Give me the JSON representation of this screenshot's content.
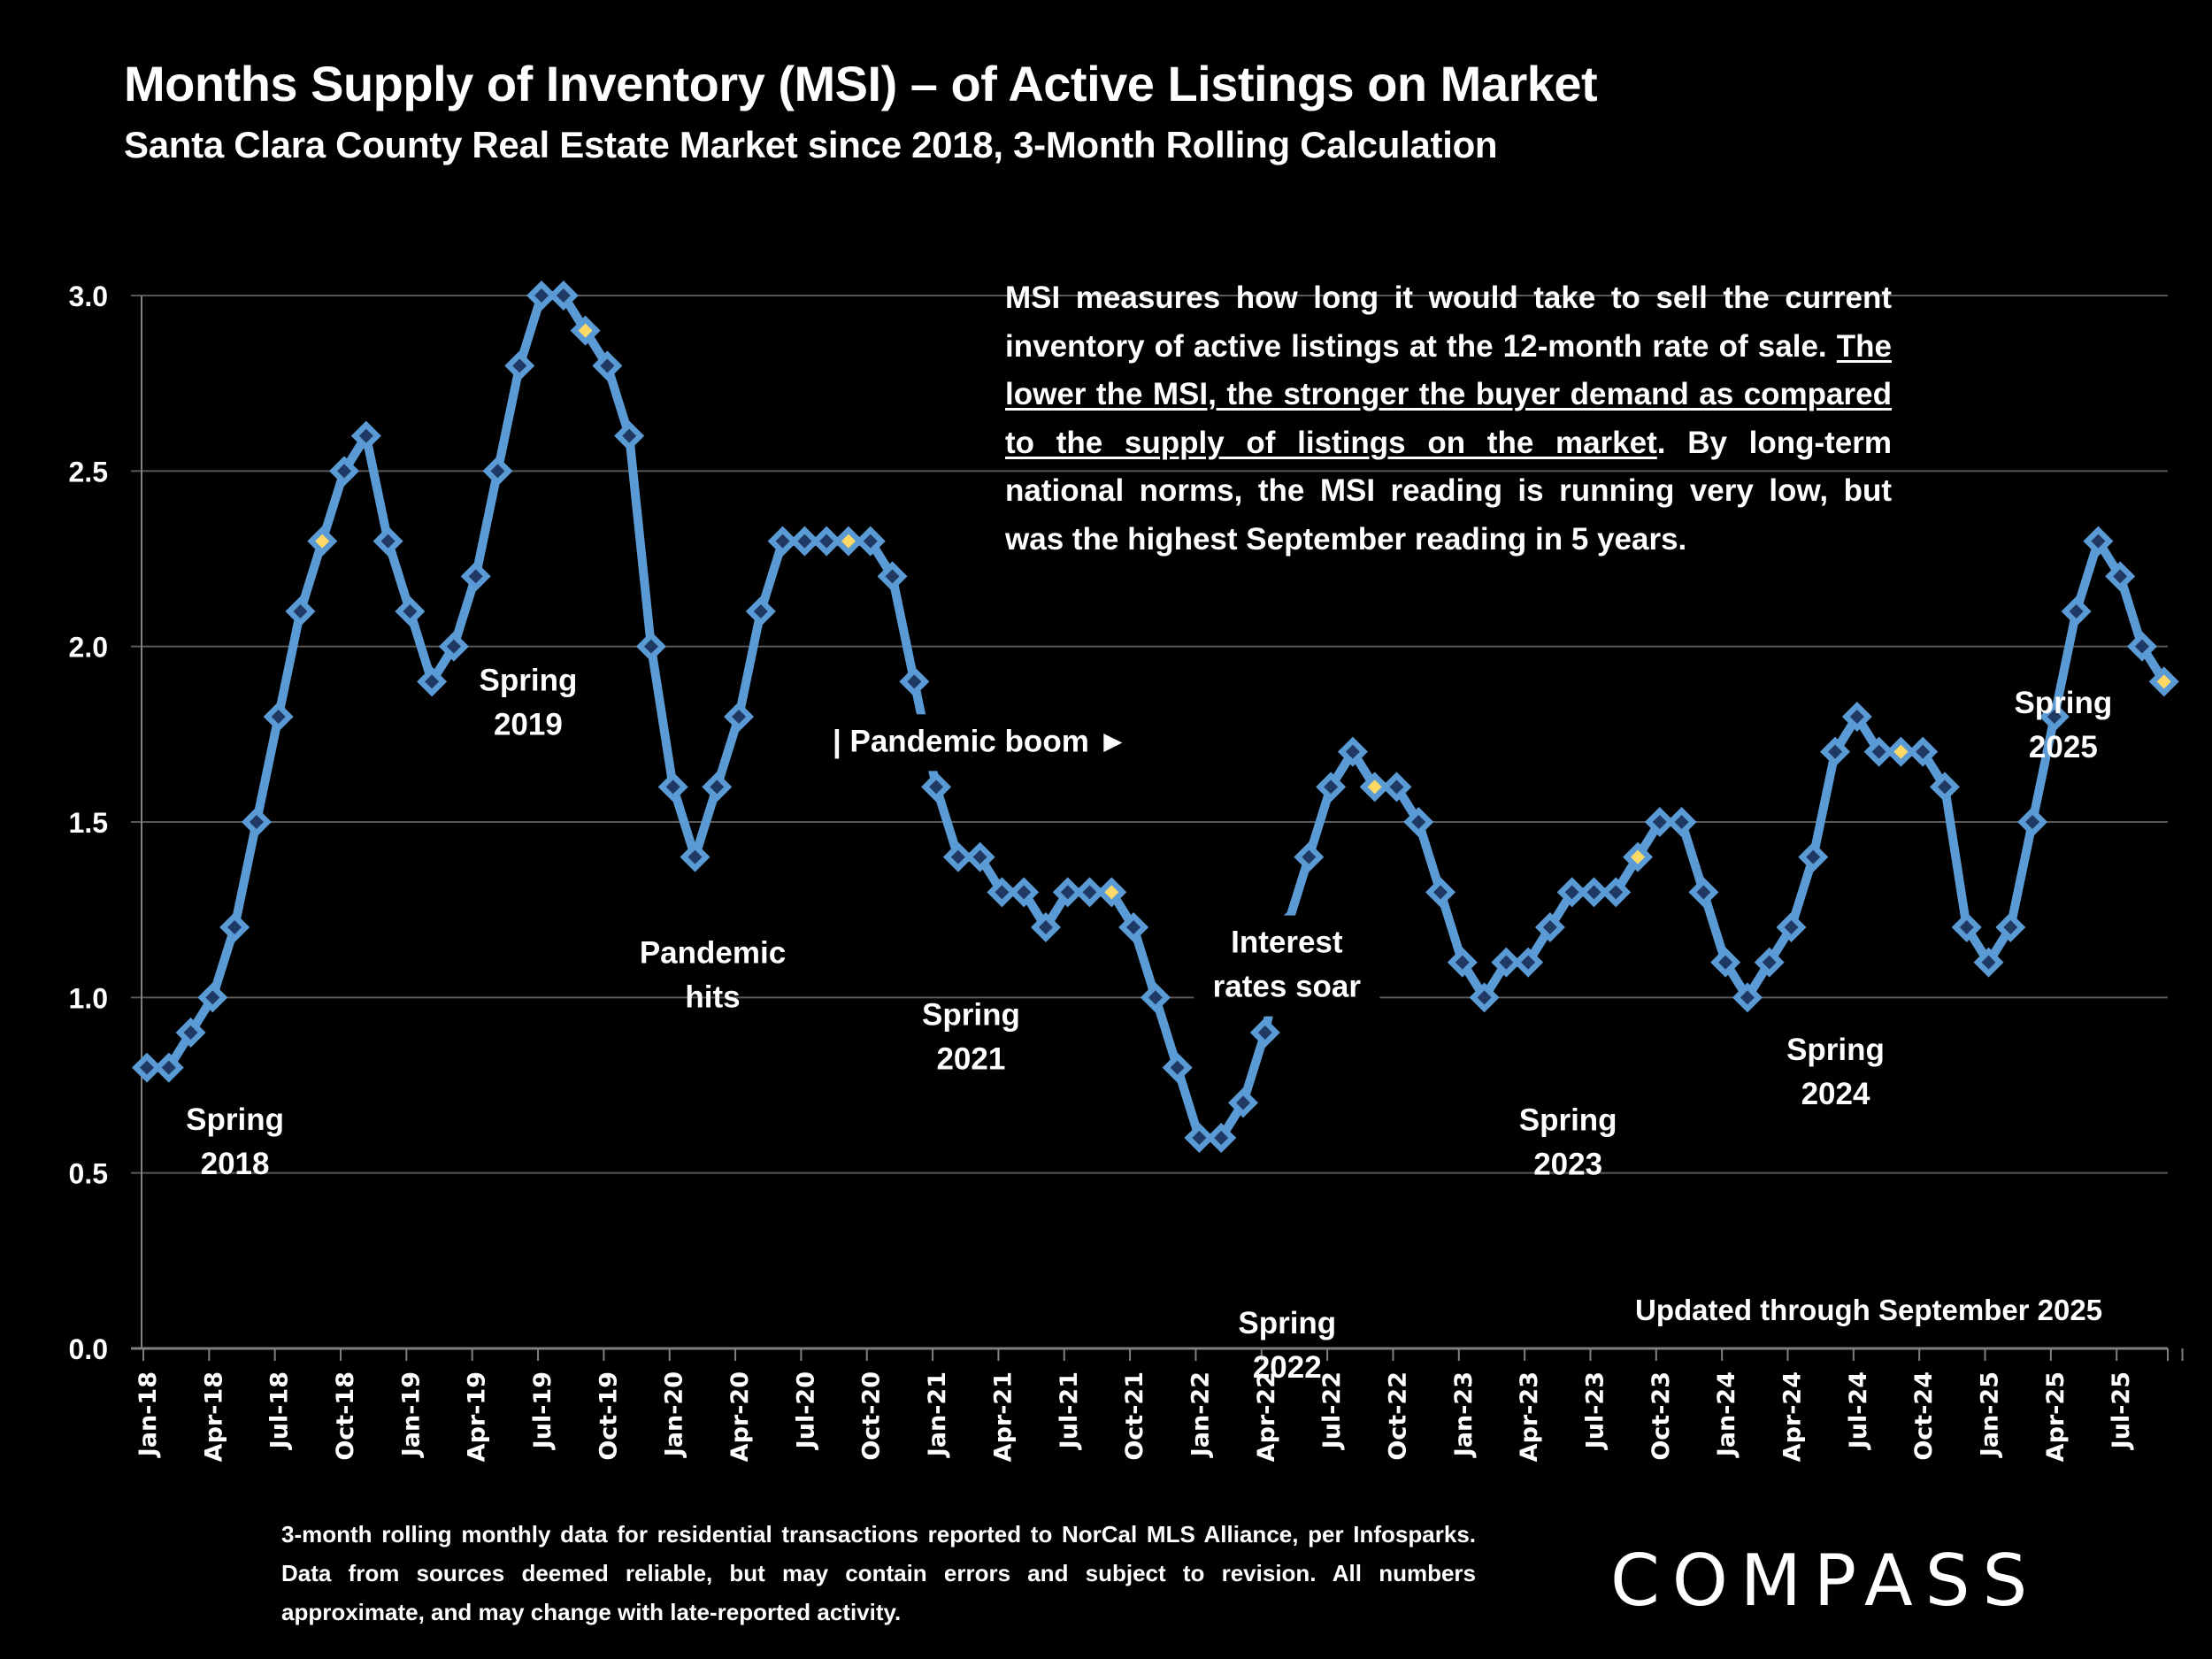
{
  "header": {
    "title": "Months Supply of Inventory (MSI) – of Active Listings on Market",
    "subtitle": "Santa Clara County Real Estate Market since 2018, 3-Month Rolling Calculation"
  },
  "note": {
    "part1": "MSI measures how long it would take to sell the current inventory of active listings at the 12-month rate of sale. ",
    "underlined": "The lower the MSI, the stronger the buyer demand as compared to the supply of listings on the market",
    "part2": ".  By long-term national norms, the MSI reading is running very low, but was the highest September reading in 5 years."
  },
  "updated_label": "Updated through September 2025",
  "footer_text": "3-month rolling monthly data for residential transactions reported to NorCal MLS Alliance, per Infosparks. Data from sources deemed reliable, but may contain errors and subject to revision. All numbers approximate, and may change with late-reported activity.",
  "logo_text": "COMPASS",
  "colors": {
    "line": "#5B9BD5",
    "marker_fill": "#1F3864",
    "highlight_fill": "#FFD966",
    "grid": "#595959",
    "axis": "#808080",
    "background": "#000000",
    "text": "#FFFFFF"
  },
  "chart_data": {
    "type": "line",
    "title": "Months Supply of Inventory (MSI) – of Active Listings on Market",
    "xlabel": "",
    "ylabel": "",
    "ylim": [
      0,
      3.0
    ],
    "yticks": [
      "0.0",
      "0.5",
      "1.0",
      "1.5",
      "2.0",
      "2.5",
      "3.0"
    ],
    "grid": true,
    "legend": "none",
    "x_tick_labels": [
      "Jan-18",
      "Apr-18",
      "Jul-18",
      "Oct-18",
      "Jan-19",
      "Apr-19",
      "Jul-19",
      "Oct-19",
      "Jan-20",
      "Apr-20",
      "Jul-20",
      "Oct-20",
      "Jan-21",
      "Apr-21",
      "Jul-21",
      "Oct-21",
      "Jan-22",
      "Apr-22",
      "Jul-22",
      "Oct-22",
      "Jan-23",
      "Apr-23",
      "Jul-23",
      "Oct-23",
      "Jan-24",
      "Apr-24",
      "Jul-24",
      "Oct-24",
      "Jan-25",
      "Apr-25",
      "Jul-25"
    ],
    "x": [
      "Jan-18",
      "Feb-18",
      "Mar-18",
      "Apr-18",
      "May-18",
      "Jun-18",
      "Jul-18",
      "Aug-18",
      "Sep-18",
      "Oct-18",
      "Nov-18",
      "Dec-18",
      "Jan-19",
      "Feb-19",
      "Mar-19",
      "Apr-19",
      "May-19",
      "Jun-19",
      "Jul-19",
      "Aug-19",
      "Sep-19",
      "Oct-19",
      "Nov-19",
      "Dec-19",
      "Jan-20",
      "Feb-20",
      "Mar-20",
      "Apr-20",
      "May-20",
      "Jun-20",
      "Jul-20",
      "Aug-20",
      "Sep-20",
      "Oct-20",
      "Nov-20",
      "Dec-20",
      "Jan-21",
      "Feb-21",
      "Mar-21",
      "Apr-21",
      "May-21",
      "Jun-21",
      "Jul-21",
      "Aug-21",
      "Sep-21",
      "Oct-21",
      "Nov-21",
      "Dec-21",
      "Jan-22",
      "Feb-22",
      "Mar-22",
      "Apr-22",
      "May-22",
      "Jun-22",
      "Jul-22",
      "Aug-22",
      "Sep-22",
      "Oct-22",
      "Nov-22",
      "Dec-22",
      "Jan-23",
      "Feb-23",
      "Mar-23",
      "Apr-23",
      "May-23",
      "Jun-23",
      "Jul-23",
      "Aug-23",
      "Sep-23",
      "Oct-23",
      "Nov-23",
      "Dec-23",
      "Jan-24",
      "Feb-24",
      "Mar-24",
      "Apr-24",
      "May-24",
      "Jun-24",
      "Jul-24",
      "Aug-24",
      "Sep-24",
      "Oct-24",
      "Nov-24",
      "Dec-24",
      "Jan-25",
      "Feb-25",
      "Mar-25",
      "Apr-25",
      "May-25",
      "Jun-25",
      "Jul-25",
      "Aug-25",
      "Sep-25"
    ],
    "series": [
      {
        "name": "MSI",
        "values": [
          0.8,
          0.8,
          0.9,
          1.0,
          1.2,
          1.5,
          1.8,
          2.1,
          2.3,
          2.5,
          2.6,
          2.3,
          2.1,
          1.9,
          2.0,
          2.2,
          2.5,
          2.8,
          3.0,
          3.0,
          2.9,
          2.8,
          2.6,
          2.0,
          1.6,
          1.4,
          1.6,
          1.8,
          2.1,
          2.3,
          2.3,
          2.3,
          2.3,
          2.3,
          2.2,
          1.9,
          1.6,
          1.4,
          1.4,
          1.3,
          1.3,
          1.2,
          1.3,
          1.3,
          1.3,
          1.2,
          1.0,
          0.8,
          0.6,
          0.6,
          0.7,
          0.9,
          1.2,
          1.4,
          1.6,
          1.7,
          1.6,
          1.6,
          1.5,
          1.3,
          1.1,
          1.0,
          1.1,
          1.1,
          1.2,
          1.3,
          1.3,
          1.3,
          1.4,
          1.5,
          1.5,
          1.3,
          1.1,
          1.0,
          1.1,
          1.2,
          1.4,
          1.7,
          1.8,
          1.7,
          1.7,
          1.7,
          1.6,
          1.2,
          1.1,
          1.2,
          1.5,
          1.8,
          2.1,
          2.3,
          2.2,
          2.0,
          1.9
        ],
        "highlighted_points": [
          "Sep-18",
          "Sep-19",
          "Sep-20",
          "Sep-21",
          "Sep-22",
          "Sep-23",
          "Sep-24",
          "Sep-25"
        ]
      }
    ],
    "annotations": [
      {
        "lines": [
          "Spring",
          "2018"
        ],
        "near": "Mar-18"
      },
      {
        "lines": [
          "Spring",
          "2019"
        ],
        "near": "Mar-19"
      },
      {
        "lines": [
          "Pandemic",
          "hits"
        ],
        "near": "Feb-20"
      },
      {
        "lines": [
          "| Pandemic boom ►"
        ],
        "near": "Jan-21"
      },
      {
        "lines": [
          "Spring",
          "2021"
        ],
        "near": "Apr-21"
      },
      {
        "lines": [
          "Spring",
          "2022"
        ],
        "near": "Apr-22"
      },
      {
        "lines": [
          "Interest",
          "rates soar"
        ],
        "near": "Jun-22"
      },
      {
        "lines": [
          "Spring",
          "2023"
        ],
        "near": "Apr-23"
      },
      {
        "lines": [
          "Spring",
          "2024"
        ],
        "near": "Apr-24"
      },
      {
        "lines": [
          "Spring",
          "2025"
        ],
        "near": "Apr-25"
      }
    ]
  }
}
